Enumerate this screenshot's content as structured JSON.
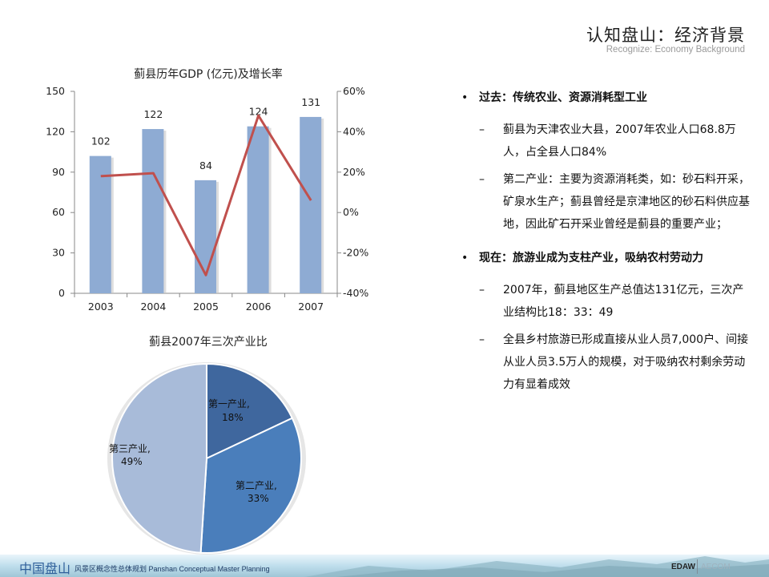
{
  "header": {
    "title": "认知盘山：经济背景",
    "subtitle": "Recognize:  Economy Background"
  },
  "chart_data": [
    {
      "type": "bar+line",
      "title": "蓟县历年GDP (亿元)及增长率",
      "categories": [
        "2003",
        "2004",
        "2005",
        "2006",
        "2007"
      ],
      "series": [
        {
          "name": "GDP (亿元)",
          "type": "bar",
          "axis": "left",
          "values": [
            102,
            122,
            84,
            124,
            131
          ],
          "color": "#8eabd3",
          "data_labels": [
            "102",
            "122",
            "84",
            "124",
            "131"
          ]
        },
        {
          "name": "增长率",
          "type": "line",
          "axis": "right",
          "values": [
            18,
            19.5,
            -31,
            48,
            6
          ],
          "unit": "%",
          "color": "#c0504d"
        }
      ],
      "left_axis": {
        "ylim": [
          0,
          150
        ],
        "ticks": [
          "0",
          "30",
          "60",
          "90",
          "120",
          "150"
        ]
      },
      "right_axis": {
        "ylim": [
          -40,
          60
        ],
        "ticks": [
          "-40%",
          "-20%",
          "0%",
          "20%",
          "40%",
          "60%"
        ]
      },
      "grid": false,
      "legend": "none"
    },
    {
      "type": "pie",
      "title": "蓟县2007年三次产业比",
      "categories": [
        "第一产业",
        "第二产业",
        "第三产业"
      ],
      "values": [
        18,
        33,
        49
      ],
      "labels": [
        "第一产业, 18%",
        "第二产业, 33%",
        "第三产业, 49%"
      ],
      "colors": [
        "#3f679e",
        "#4a7ebb",
        "#a8bbd9"
      ]
    }
  ],
  "pie_labels": {
    "s1_name": "第一产业,",
    "s1_pct": "18%",
    "s2_name": "第二产业,",
    "s2_pct": "33%",
    "s3_name": "第三产业,",
    "s3_pct": "49%"
  },
  "bullets": [
    {
      "heading": "过去：传统农业、资源消耗型工业",
      "items": [
        "蓟县为天津农业大县，2007年农业人口68.8万人，占全县人口84%",
        "第二产业：主要为资源消耗类，如：砂石料开采，矿泉水生产；蓟县曾经是京津地区的砂石料供应基地，因此矿石开采业曾经是蓟县的重要产业；"
      ]
    },
    {
      "heading": "现在：旅游业成为支柱产业，吸纳农村劳动力",
      "items": [
        "2007年，蓟县地区生产总值达131亿元，三次产业结构比18：33：49",
        "全县乡村旅游已形成直接从业人员7,000户、间接从业人员3.5万人的规模，对于吸纳农村剩余劳动力有显着成效"
      ]
    }
  ],
  "dash": "–",
  "footer": {
    "brand": "中国盘山",
    "subtitle": "风景区概念性总体规划 Panshan Conceptual Master Planning",
    "logo_left": "EDAW",
    "logo_right": "AECOM"
  }
}
